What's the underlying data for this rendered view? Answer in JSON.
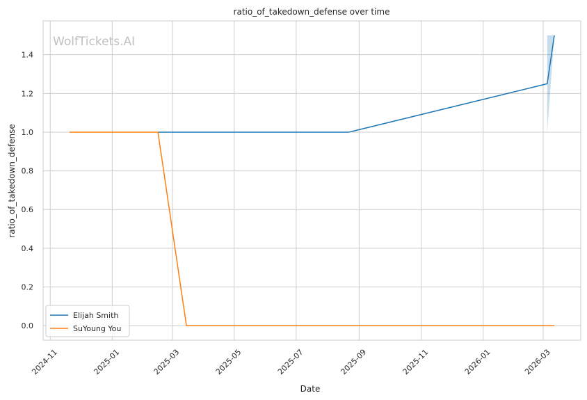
{
  "chart_data": {
    "type": "line",
    "title": "ratio_of_takedown_defense over time",
    "xlabel": "Date",
    "ylabel": "ratio_of_takedown_defense",
    "watermark": "WolfTickets.AI",
    "xlim": [
      "2024-10-25",
      "2026-04-07"
    ],
    "ylim": [
      -0.075,
      1.575
    ],
    "xticks": [
      "2024-11",
      "2025-01",
      "2025-03",
      "2025-05",
      "2025-07",
      "2025-09",
      "2025-11",
      "2026-01",
      "2026-03"
    ],
    "yticks": [
      "0.0",
      "0.2",
      "0.4",
      "0.6",
      "0.8",
      "1.0",
      "1.2",
      "1.4"
    ],
    "grid": true,
    "legend_position": "lower-left",
    "series": [
      {
        "name": "Elijah Smith",
        "color": "#1f77b4",
        "x": [
          "2025-02-15",
          "2025-08-22",
          "2026-03-05",
          "2026-03-12"
        ],
        "y": [
          1.0,
          1.0,
          1.25,
          1.5
        ],
        "band": {
          "color": "#1f77b4",
          "x": [
            "2026-03-05",
            "2026-03-12"
          ],
          "lower": [
            1.0,
            1.5
          ],
          "upper": [
            1.5,
            1.5
          ]
        }
      },
      {
        "name": "SuYoung You",
        "color": "#ff7f0e",
        "x": [
          "2024-11-20",
          "2025-02-15",
          "2025-03-15",
          "2026-03-12"
        ],
        "y": [
          1.0,
          1.0,
          0.0,
          0.0
        ]
      }
    ]
  }
}
